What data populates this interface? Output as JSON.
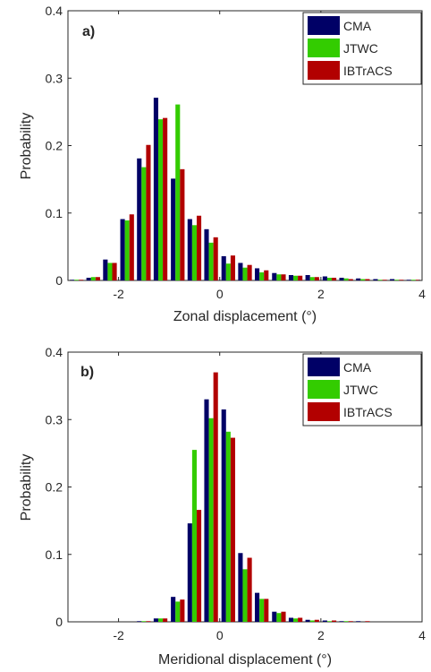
{
  "chart_data": [
    {
      "type": "bar",
      "panel_label": "a)",
      "xlabel": "Zonal displacement (°)",
      "ylabel": "Probability",
      "xlim": [
        -3,
        4
      ],
      "ylim": [
        0,
        0.4
      ],
      "xticks": [
        -2,
        0,
        2,
        4
      ],
      "yticks": [
        0,
        0.1,
        0.2,
        0.3,
        0.4
      ],
      "xtick_labels": [
        "-2",
        "0",
        "2",
        "4"
      ],
      "ytick_labels": [
        "0",
        "0.1",
        "0.2",
        "0.3",
        "0.4"
      ],
      "grid": false,
      "legend_position": "top-right",
      "x": [
        -2.83,
        -2.5,
        -2.17,
        -1.83,
        -1.5,
        -1.17,
        -0.83,
        -0.5,
        -0.17,
        0.17,
        0.5,
        0.83,
        1.17,
        1.5,
        1.83,
        2.17,
        2.5,
        2.83,
        3.17,
        3.5,
        3.83
      ],
      "series": [
        {
          "name": "CMA",
          "color": "#000066",
          "values": [
            0.001,
            0.004,
            0.031,
            0.091,
            0.181,
            0.271,
            0.151,
            0.091,
            0.076,
            0.036,
            0.026,
            0.018,
            0.011,
            0.008,
            0.008,
            0.006,
            0.004,
            0.003,
            0.002,
            0.002,
            0.001
          ]
        },
        {
          "name": "JTWC",
          "color": "#33cc00",
          "values": [
            0.001,
            0.005,
            0.026,
            0.089,
            0.168,
            0.239,
            0.261,
            0.082,
            0.056,
            0.025,
            0.019,
            0.012,
            0.009,
            0.007,
            0.005,
            0.004,
            0.003,
            0.002,
            0.001,
            0.001,
            0.001
          ]
        },
        {
          "name": "IBTrACS",
          "color": "#b20000",
          "values": [
            0.001,
            0.005,
            0.026,
            0.098,
            0.201,
            0.241,
            0.165,
            0.096,
            0.064,
            0.037,
            0.023,
            0.015,
            0.009,
            0.007,
            0.005,
            0.004,
            0.002,
            0.002,
            0.001,
            0.001,
            0.001
          ]
        }
      ]
    },
    {
      "type": "bar",
      "panel_label": "b)",
      "xlabel": "Meridional displacement (°)",
      "ylabel": "Probability",
      "xlim": [
        -3,
        4
      ],
      "ylim": [
        0,
        0.4
      ],
      "xticks": [
        -2,
        0,
        2,
        4
      ],
      "yticks": [
        0,
        0.1,
        0.2,
        0.3,
        0.4
      ],
      "xtick_labels": [
        "-2",
        "0",
        "2",
        "4"
      ],
      "ytick_labels": [
        "0",
        "0.1",
        "0.2",
        "0.3",
        "0.4"
      ],
      "grid": false,
      "legend_position": "top-right",
      "x": [
        -2.83,
        -2.5,
        -2.17,
        -1.83,
        -1.5,
        -1.17,
        -0.83,
        -0.5,
        -0.17,
        0.17,
        0.5,
        0.83,
        1.17,
        1.5,
        1.83,
        2.17,
        2.5,
        2.83,
        3.17,
        3.5,
        3.83
      ],
      "series": [
        {
          "name": "CMA",
          "color": "#000066",
          "values": [
            0,
            0,
            0,
            0,
            0.001,
            0.005,
            0.037,
            0.146,
            0.33,
            0.315,
            0.102,
            0.043,
            0.015,
            0.006,
            0.003,
            0.002,
            0.001,
            0.001,
            0,
            0,
            0
          ]
        },
        {
          "name": "JTWC",
          "color": "#33cc00",
          "values": [
            0,
            0,
            0,
            0,
            0.001,
            0.005,
            0.03,
            0.255,
            0.302,
            0.282,
            0.078,
            0.034,
            0.013,
            0.005,
            0.002,
            0.001,
            0.001,
            0,
            0,
            0,
            0
          ]
        },
        {
          "name": "IBTrACS",
          "color": "#b20000",
          "values": [
            0,
            0,
            0,
            0,
            0.001,
            0.005,
            0.033,
            0.166,
            0.37,
            0.273,
            0.095,
            0.034,
            0.015,
            0.006,
            0.003,
            0.002,
            0.001,
            0.001,
            0,
            0,
            0
          ]
        }
      ]
    }
  ]
}
